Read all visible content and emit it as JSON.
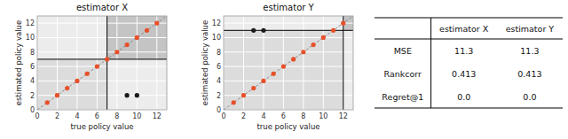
{
  "chart_data": [
    {
      "type": "scatter",
      "title": "estimator X",
      "x_label": "true policy value",
      "y_label": "estimated policy value",
      "xlim": [
        0,
        13
      ],
      "ylim": [
        0,
        13
      ],
      "xticks": [
        0,
        2,
        4,
        6,
        8,
        10,
        12
      ],
      "yticks": [
        0,
        2,
        4,
        6,
        8,
        10,
        12
      ],
      "grid": true,
      "hline": 7,
      "vline": 7,
      "series": [
        {
          "color": "#e8502a",
          "x": [
            1,
            2,
            3,
            4,
            5,
            6,
            7,
            8,
            9,
            10,
            11,
            12
          ],
          "values": [
            1,
            2,
            3,
            4,
            5,
            6,
            7,
            8,
            9,
            10,
            11,
            12
          ]
        },
        {
          "color": "#1a1a1a",
          "x": [
            9,
            10
          ],
          "values": [
            2,
            2
          ]
        }
      ]
    },
    {
      "type": "scatter",
      "title": "estimator Y",
      "x_label": "true policy value",
      "y_label": "estimated policy value",
      "xlim": [
        0,
        13
      ],
      "ylim": [
        0,
        13
      ],
      "xticks": [
        0,
        2,
        4,
        6,
        8,
        10,
        12
      ],
      "yticks": [
        0,
        2,
        4,
        6,
        8,
        10,
        12
      ],
      "grid": true,
      "hline": 11,
      "vline": 12,
      "series": [
        {
          "color": "#e8502a",
          "x": [
            1,
            2,
            3,
            4,
            5,
            6,
            7,
            8,
            9,
            10,
            11,
            12
          ],
          "values": [
            1,
            2,
            3,
            4,
            5,
            6,
            7,
            8,
            9,
            10,
            11,
            12
          ]
        },
        {
          "color": "#1a1a1a",
          "x": [
            3,
            4
          ],
          "values": [
            11,
            11
          ]
        }
      ]
    },
    {
      "type": "table",
      "categories": [
        "MSE",
        "Rankcorr",
        "Regret@1"
      ],
      "series": [
        {
          "name": "estimator X",
          "values": [
            11.3,
            0.413,
            0.0
          ],
          "value_labels": [
            "11.3",
            "0.413",
            "0.0"
          ]
        },
        {
          "name": "estimator Y",
          "values": [
            11.3,
            0.413,
            0.0
          ],
          "value_labels": [
            "11.3",
            "0.413",
            "0.0"
          ]
        }
      ]
    }
  ]
}
